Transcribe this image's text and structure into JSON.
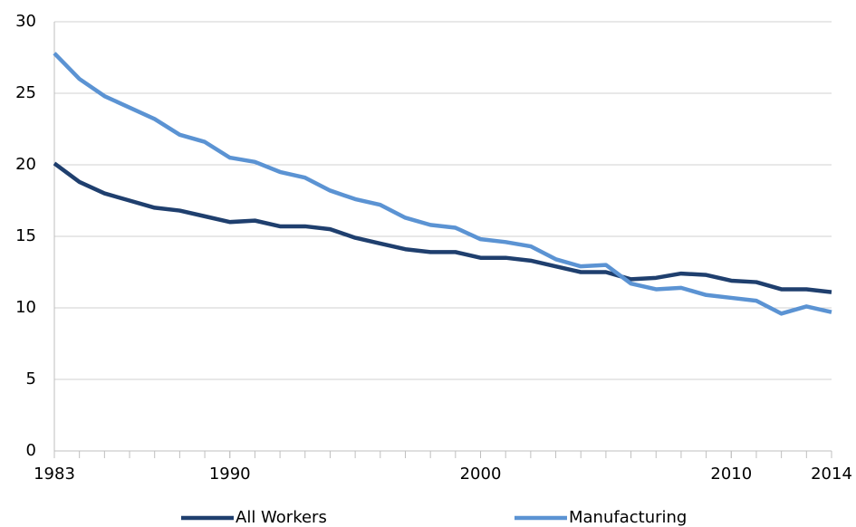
{
  "chart_data": {
    "type": "line",
    "x": [
      1983,
      1984,
      1985,
      1986,
      1987,
      1988,
      1989,
      1990,
      1991,
      1992,
      1993,
      1994,
      1995,
      1996,
      1997,
      1998,
      1999,
      2000,
      2001,
      2002,
      2003,
      2004,
      2005,
      2006,
      2007,
      2008,
      2009,
      2010,
      2011,
      2012,
      2013,
      2014
    ],
    "series": [
      {
        "name": "All Workers",
        "color": "#1f3f6e",
        "values": [
          20.1,
          18.8,
          18.0,
          17.5,
          17.0,
          16.8,
          16.4,
          16.0,
          16.1,
          15.7,
          15.7,
          15.5,
          14.9,
          14.5,
          14.1,
          13.9,
          13.9,
          13.5,
          13.5,
          13.3,
          12.9,
          12.5,
          12.5,
          12.0,
          12.1,
          12.4,
          12.3,
          11.9,
          11.8,
          11.3,
          11.3,
          11.1
        ]
      },
      {
        "name": "Manufacturing",
        "color": "#5b93d3",
        "values": [
          27.8,
          26.0,
          24.8,
          24.0,
          23.2,
          22.1,
          21.6,
          20.5,
          20.2,
          19.5,
          19.1,
          18.2,
          17.6,
          17.2,
          16.3,
          15.8,
          15.6,
          14.8,
          14.6,
          14.3,
          13.4,
          12.9,
          13.0,
          11.7,
          11.3,
          11.4,
          10.9,
          10.7,
          10.5,
          9.6,
          10.1,
          9.7
        ]
      }
    ],
    "xlim": [
      1983,
      2014
    ],
    "xticks": [
      1983,
      1990,
      2000,
      2010,
      2014
    ],
    "ylim": [
      0,
      30
    ],
    "yticks": [
      0,
      5,
      10,
      15,
      20,
      25,
      30
    ],
    "grid": true,
    "legend": "bottom"
  }
}
